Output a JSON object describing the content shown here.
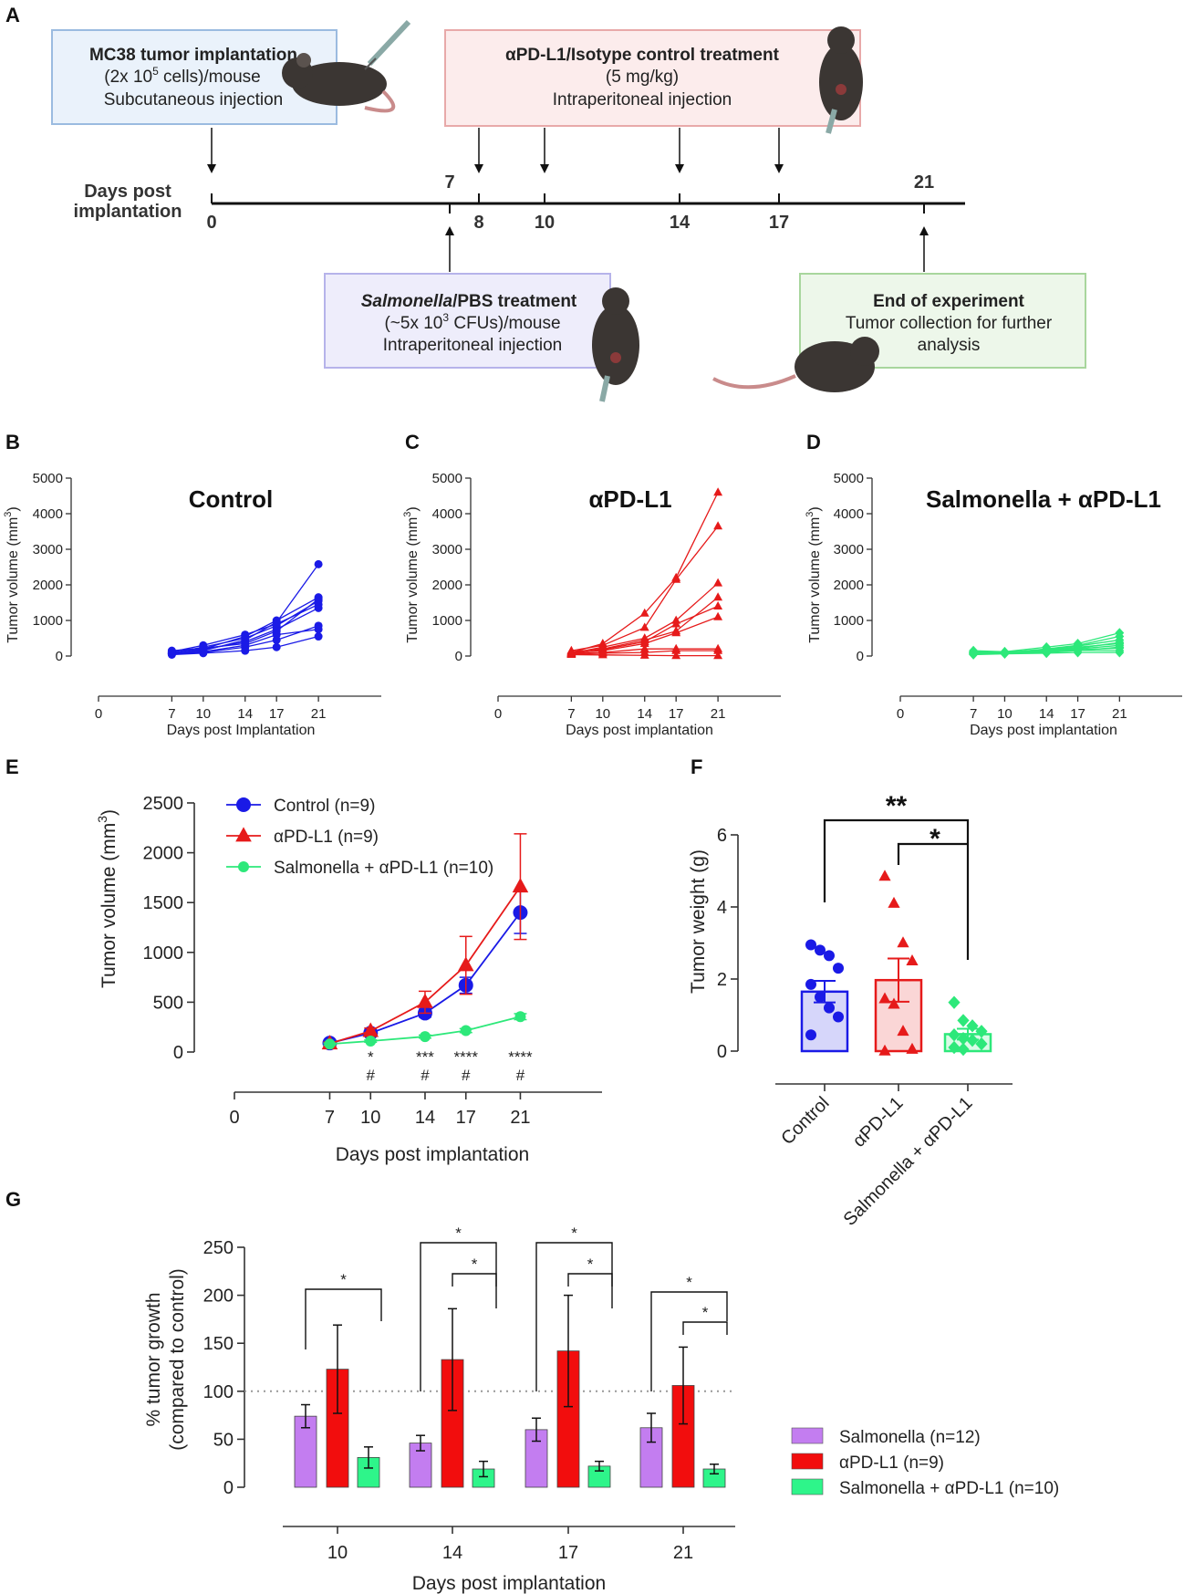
{
  "panels": {
    "A": {
      "label": "A",
      "axis_label_line1": "Days post",
      "axis_label_line2": "implantation",
      "implant_box": {
        "line1": "MC38 tumor implantation",
        "line2_pre": "2x 10",
        "line2_sup": "5",
        "line2_post": " cells",
        "line2_tail": "/mouse",
        "line3": "Subcutaneous injection"
      },
      "treat_box": {
        "line1": "αPD-L1/Isotype control treatment",
        "line2": "(5 mg/kg)",
        "line3": "Intraperitoneal injection"
      },
      "salm_box": {
        "line1_italic": "Salmonella",
        "line1_rest": "/PBS treatment",
        "line2_pre": "~5x 10",
        "line2_sup": "3",
        "line2_post": "  CFUs",
        "line2_tail": "/mouse",
        "line3": "Intraperitoneal injection"
      },
      "end_box": {
        "line1": "End of experiment",
        "line2": "Tumor collection for further",
        "line3": "analysis"
      },
      "timeline_days_below": [
        "0",
        "8",
        "10",
        "14",
        "17"
      ],
      "timeline_days_above": [
        "7",
        "21"
      ],
      "arrows_down_days": [
        0,
        8,
        10,
        14,
        17
      ],
      "arrows_up_days": [
        7,
        21
      ]
    },
    "B": {
      "label": "B",
      "title": "Control",
      "xlabel": "Days post Implantation",
      "ylabel_pre": "Tumor volume (mm",
      "ylabel_sup": "3",
      "ylabel_post": ")"
    },
    "C": {
      "label": "C",
      "title": "αPD-L1",
      "xlabel": "Days post implantation",
      "ylabel_pre": "Tumor volume (mm",
      "ylabel_sup": "3",
      "ylabel_post": ")"
    },
    "D": {
      "label": "D",
      "title": "Salmonella + αPD-L1",
      "xlabel": "Days post implantation",
      "ylabel_pre": "Tumor volume (mm",
      "ylabel_sup": "3",
      "ylabel_post": ")"
    },
    "E": {
      "label": "E",
      "xlabel": "Days post implantation",
      "ylabel_pre": "Tumor volume (mm",
      "ylabel_sup": "3",
      "ylabel_post": ")"
    },
    "F": {
      "label": "F",
      "ylabel": "Tumor weight (g)"
    },
    "G": {
      "label": "G",
      "xlabel": "Days post implantation",
      "ylabel_line1": "% tumor growth",
      "ylabel_line2": "(compared to control)"
    }
  },
  "chart_data": [
    {
      "id": "B",
      "type": "line",
      "title": "Control",
      "xlabel": "Days post Implantation",
      "ylabel": "Tumor volume (mm3)",
      "x": [
        7,
        10,
        14,
        17,
        21
      ],
      "xlim": [
        0,
        27
      ],
      "xticks": [
        0,
        7,
        10,
        14,
        17,
        21
      ],
      "ylim": [
        0,
        5000
      ],
      "yticks": [
        0,
        1000,
        2000,
        3000,
        4000,
        5000
      ],
      "color": "#1a1ae6",
      "marker": "circle",
      "series": [
        [
          80,
          150,
          450,
          950,
          2580
        ],
        [
          100,
          200,
          550,
          1000,
          1650
        ],
        [
          90,
          250,
          500,
          850,
          1550
        ],
        [
          60,
          180,
          400,
          750,
          1350
        ],
        [
          120,
          300,
          600,
          900,
          1450
        ],
        [
          50,
          100,
          250,
          450,
          850
        ],
        [
          70,
          120,
          300,
          600,
          750
        ],
        [
          40,
          80,
          150,
          250,
          550
        ],
        [
          150,
          220,
          350,
          700,
          1600
        ]
      ]
    },
    {
      "id": "C",
      "type": "line",
      "title": "αPD-L1",
      "xlabel": "Days post implantation",
      "ylabel": "Tumor volume (mm3)",
      "x": [
        7,
        10,
        14,
        17,
        21
      ],
      "xlim": [
        0,
        27
      ],
      "xticks": [
        0,
        7,
        10,
        14,
        17,
        21
      ],
      "ylim": [
        0,
        5000
      ],
      "yticks": [
        0,
        1000,
        2000,
        3000,
        4000,
        5000
      ],
      "color": "#e61a1a",
      "marker": "triangle",
      "series": [
        [
          100,
          350,
          1200,
          2200,
          4600
        ],
        [
          150,
          300,
          800,
          2150,
          3650
        ],
        [
          80,
          250,
          500,
          1000,
          2050
        ],
        [
          120,
          200,
          450,
          700,
          1650
        ],
        [
          60,
          180,
          400,
          900,
          1400
        ],
        [
          90,
          150,
          350,
          650,
          1100
        ],
        [
          70,
          100,
          200,
          200,
          200
        ],
        [
          50,
          80,
          100,
          150,
          150
        ],
        [
          40,
          30,
          20,
          10,
          10
        ]
      ]
    },
    {
      "id": "D",
      "type": "line",
      "title": "Salmonella + αPD-L1",
      "xlabel": "Days post implantation",
      "ylabel": "Tumor volume (mm3)",
      "x": [
        7,
        10,
        14,
        17,
        21
      ],
      "xlim": [
        0,
        27
      ],
      "xticks": [
        0,
        7,
        10,
        14,
        17,
        21
      ],
      "ylim": [
        0,
        5000
      ],
      "yticks": [
        0,
        1000,
        2000,
        3000,
        4000,
        5000
      ],
      "color": "#2de87a",
      "marker": "diamond",
      "series": [
        [
          150,
          120,
          250,
          350,
          650
        ],
        [
          100,
          100,
          200,
          300,
          550
        ],
        [
          80,
          90,
          180,
          280,
          450
        ],
        [
          120,
          110,
          150,
          220,
          380
        ],
        [
          60,
          80,
          120,
          200,
          300
        ],
        [
          90,
          100,
          160,
          250,
          350
        ],
        [
          50,
          70,
          100,
          150,
          250
        ],
        [
          70,
          90,
          130,
          180,
          220
        ],
        [
          110,
          100,
          140,
          160,
          150
        ],
        [
          40,
          60,
          80,
          100,
          100
        ]
      ]
    },
    {
      "id": "E",
      "type": "line",
      "xlabel": "Days post implantation",
      "ylabel": "Tumor volume (mm3)",
      "x": [
        7,
        10,
        14,
        17,
        21
      ],
      "xlim": [
        0,
        27
      ],
      "xticks": [
        0,
        7,
        10,
        14,
        17,
        21
      ],
      "ylim": [
        0,
        2500
      ],
      "yticks": [
        0,
        500,
        1000,
        1500,
        2000,
        2500
      ],
      "legend": "top-left",
      "series": [
        {
          "name": "Control (n=9)",
          "color": "#1a1ae6",
          "marker": "circle",
          "values": [
            90,
            190,
            390,
            670,
            1400
          ],
          "err": [
            15,
            25,
            40,
            80,
            210
          ]
        },
        {
          "name": "αPD-L1 (n=9)",
          "color": "#e61a1a",
          "marker": "triangle",
          "values": [
            85,
            210,
            500,
            870,
            1660
          ],
          "err": [
            15,
            30,
            110,
            290,
            530
          ]
        },
        {
          "name": "Salmonella + αPD-L1 (n=10)",
          "color": "#2de87a",
          "marker": "circle",
          "values": [
            80,
            110,
            155,
            215,
            355
          ],
          "err": [
            10,
            12,
            15,
            20,
            30
          ]
        }
      ],
      "annotations": [
        {
          "x": 10,
          "stars": "*",
          "hash": "#"
        },
        {
          "x": 14,
          "stars": "***",
          "hash": "#"
        },
        {
          "x": 17,
          "stars": "****",
          "hash": "#"
        },
        {
          "x": 21,
          "stars": "****",
          "hash": "#"
        }
      ]
    },
    {
      "id": "F",
      "type": "bar",
      "ylabel": "Tumor weight (g)",
      "categories": [
        "Control",
        "αPD-L1",
        "Salmonella + αPD-L1"
      ],
      "values": [
        1.65,
        1.97,
        0.47
      ],
      "err": [
        0.3,
        0.6,
        0.15
      ],
      "ylim": [
        0,
        6
      ],
      "yticks": [
        0,
        2,
        4,
        6
      ],
      "colors": [
        "#1a1ae6",
        "#e61a1a",
        "#2de87a"
      ],
      "markers": [
        "circle",
        "triangle",
        "diamond"
      ],
      "points": [
        [
          2.95,
          2.8,
          2.65,
          2.3,
          1.85,
          1.5,
          1.2,
          0.95,
          0.45
        ],
        [
          4.85,
          4.1,
          3.0,
          2.5,
          1.45,
          1.3,
          0.55,
          0.05,
          0.0
        ],
        [
          1.35,
          0.85,
          0.7,
          0.55,
          0.45,
          0.35,
          0.3,
          0.2,
          0.1,
          0.05
        ]
      ],
      "brackets": [
        {
          "from": 0,
          "to": 2,
          "label": "**"
        },
        {
          "from": 1,
          "to": 2,
          "label": "*"
        }
      ]
    },
    {
      "id": "G",
      "type": "bar",
      "xlabel": "Days post implantation",
      "ylabel": "% tumor growth (compared to control)",
      "categories": [
        "10",
        "14",
        "17",
        "21"
      ],
      "ylim": [
        0,
        250
      ],
      "yticks": [
        0,
        50,
        100,
        150,
        200,
        250
      ],
      "reference_line": 100,
      "legend": "right",
      "series": [
        {
          "name": "Salmonella (n=12)",
          "color": "#c37df0",
          "values": [
            74,
            46,
            60,
            62
          ],
          "err": [
            12,
            8,
            12,
            15
          ]
        },
        {
          "name": "αPD-L1 (n=9)",
          "color": "#f20d0d",
          "values": [
            123,
            133,
            142,
            106
          ],
          "err": [
            46,
            53,
            58,
            40
          ]
        },
        {
          "name": "Salmonella + αPD-L1 (n=10)",
          "color": "#2ef58a",
          "values": [
            31,
            19,
            22,
            19
          ],
          "err": [
            11,
            8,
            5,
            5
          ]
        }
      ],
      "brackets": [
        {
          "category": 0,
          "from": 0,
          "to": 2,
          "label": "*"
        },
        {
          "category": 1,
          "from": 0,
          "to": 2,
          "label": "*"
        },
        {
          "category": 1,
          "from": 1,
          "to": 2,
          "label": "*"
        },
        {
          "category": 2,
          "from": 0,
          "to": 2,
          "label": "*"
        },
        {
          "category": 2,
          "from": 1,
          "to": 2,
          "label": "*"
        },
        {
          "category": 3,
          "from": 0,
          "to": 2,
          "label": "*"
        },
        {
          "category": 3,
          "from": 1,
          "to": 2,
          "label": "*"
        }
      ]
    }
  ]
}
